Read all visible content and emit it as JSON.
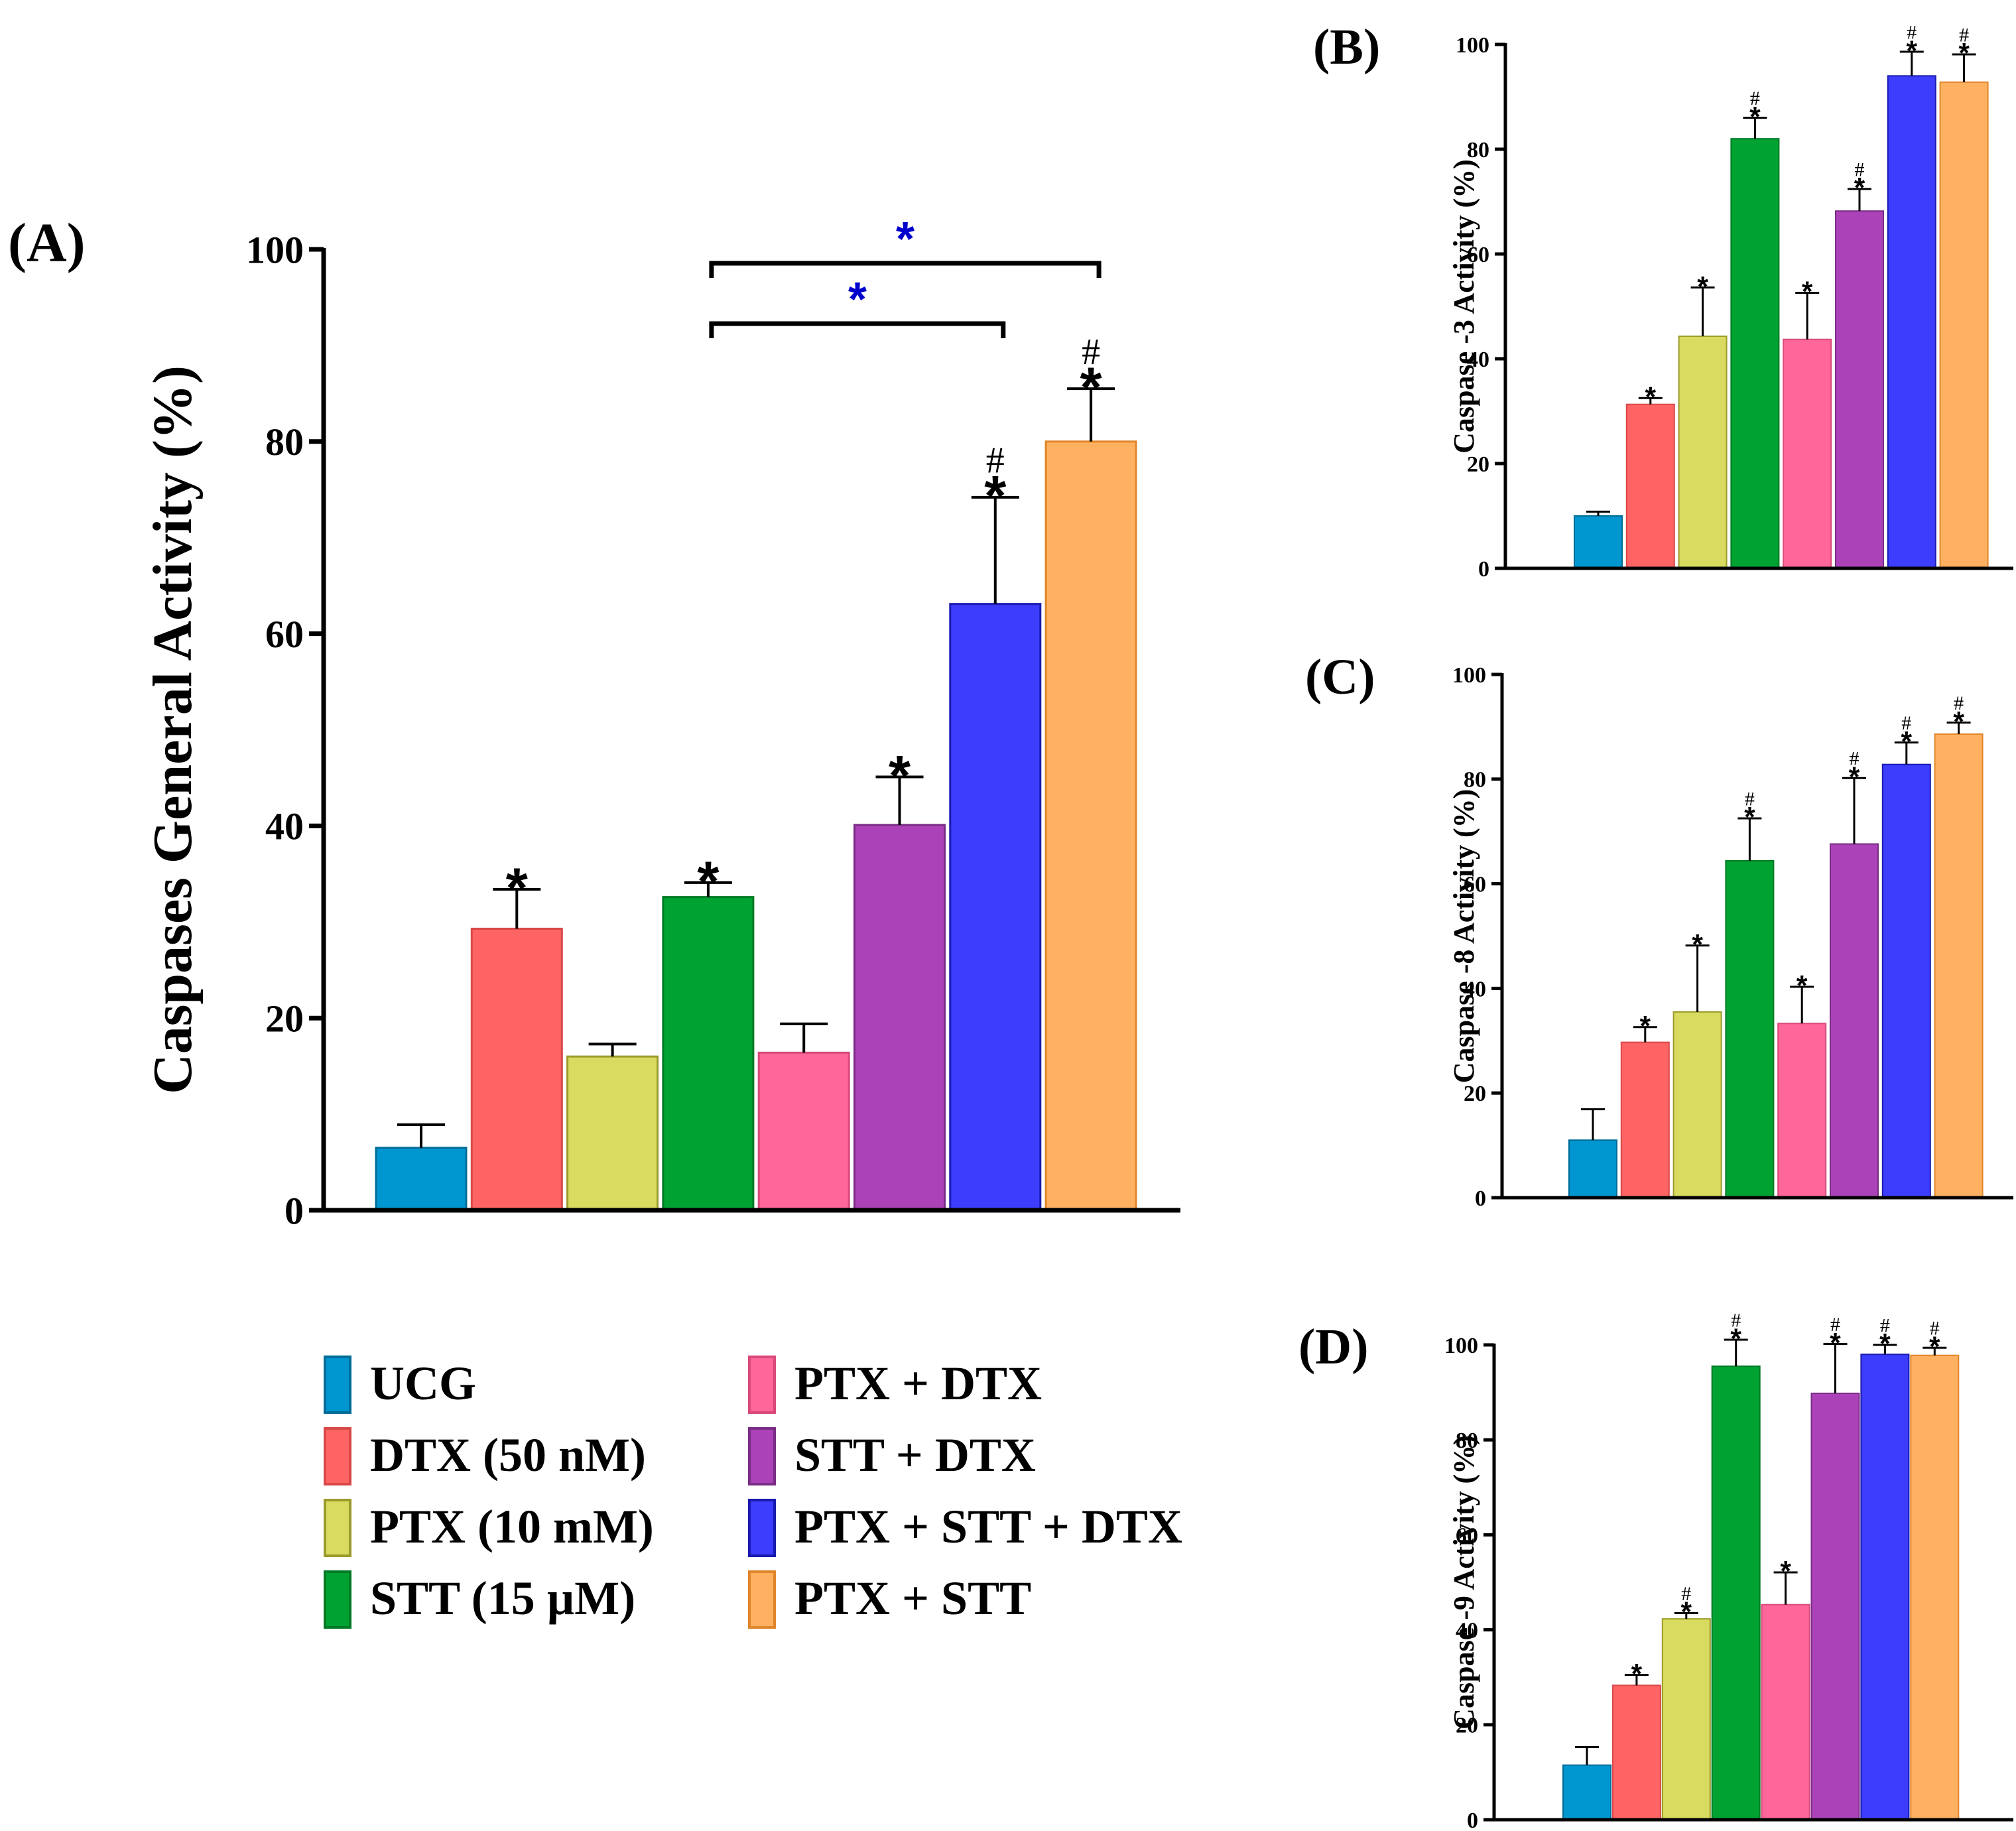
{
  "panel_labels": {
    "A": "(A)",
    "B": "(B)",
    "C": "(C)",
    "D": "(D)"
  },
  "colors": {
    "fills": [
      "#0096cf",
      "#ff6464",
      "#d9db60",
      "#00a232",
      "#ff6699",
      "#ab42b8",
      "#3d3dfd",
      "#ffb161"
    ],
    "strokes": [
      "#006d98",
      "#d94848",
      "#9b9b2a",
      "#007a24",
      "#d94a7a",
      "#7a2d86",
      "#1a1ab0",
      "#e0852a"
    ],
    "significance": "#0000cc",
    "ink": "#000000"
  },
  "legend": {
    "items": [
      "UCG",
      "DTX (50 nM)",
      "PTX (10 mM)",
      "STT (15 µM)",
      "PTX + DTX",
      "STT + DTX",
      "PTX + STT + DTX",
      "PTX + STT"
    ]
  },
  "chart_data": [
    {
      "id": "A",
      "type": "bar",
      "title": "",
      "xlabel": "",
      "ylabel": "Caspases General Activity (%)",
      "ylim": [
        0,
        100
      ],
      "yticks": [
        0,
        20,
        40,
        60,
        80,
        100
      ],
      "categories": [
        "UCG",
        "DTX (50 nM)",
        "PTX (10 mM)",
        "STT (15 µM)",
        "PTX + DTX",
        "STT + DTX",
        "PTX + STT + DTX",
        "PTX + STT"
      ],
      "values": [
        6.5,
        29.3,
        16.0,
        32.6,
        16.4,
        40.1,
        63.1,
        80.0
      ],
      "errors": [
        2.4,
        4.1,
        1.3,
        1.5,
        3.0,
        5.0,
        11.1,
        5.5
      ],
      "annotations": [
        "",
        "*",
        "",
        "*",
        "",
        "*",
        "#\n*",
        "#\n*"
      ],
      "comparisons": [
        {
          "from": 3,
          "to": 6,
          "label": "*"
        },
        {
          "from": 3,
          "to": 7,
          "label": "*"
        }
      ]
    },
    {
      "id": "B",
      "type": "bar",
      "ylabel": "Caspase -3 Activity (%)",
      "ylim": [
        0,
        100
      ],
      "yticks": [
        0,
        20,
        40,
        60,
        80,
        100
      ],
      "categories": [
        "UCG",
        "DTX (50 nM)",
        "PTX (10 mM)",
        "STT (15 µM)",
        "PTX + DTX",
        "STT + DTX",
        "PTX + STT + DTX",
        "PTX + STT"
      ],
      "values": [
        10.0,
        31.3,
        44.3,
        82.0,
        43.7,
        68.2,
        94.0,
        92.8
      ],
      "errors": [
        0.8,
        1.2,
        9.3,
        4.0,
        8.9,
        4.2,
        4.6,
        5.3
      ],
      "annotations": [
        "",
        "*",
        "*",
        "#\n*",
        "*",
        "#\n*",
        "#\n*",
        "#\n*"
      ]
    },
    {
      "id": "C",
      "type": "bar",
      "ylabel": "Caspase -8 Activity (%)",
      "ylim": [
        0,
        100
      ],
      "yticks": [
        0,
        20,
        40,
        60,
        80,
        100
      ],
      "categories": [
        "UCG",
        "DTX (50 nM)",
        "PTX (10 mM)",
        "STT (15 µM)",
        "PTX + DTX",
        "STT + DTX",
        "PTX + STT + DTX",
        "PTX + STT"
      ],
      "values": [
        11.0,
        29.7,
        35.5,
        64.4,
        33.3,
        67.6,
        82.8,
        88.6
      ],
      "errors": [
        5.9,
        2.9,
        12.7,
        8.1,
        7.0,
        12.6,
        4.2,
        2.2
      ],
      "annotations": [
        "",
        "*",
        "*",
        "#\n*",
        "*",
        "#\n*",
        "#\n*",
        "#\n*"
      ]
    },
    {
      "id": "D",
      "type": "bar",
      "ylabel": "Caspase -9 Activity (%)",
      "ylim": [
        0,
        100
      ],
      "yticks": [
        0,
        20,
        40,
        60,
        80,
        100
      ],
      "categories": [
        "UCG",
        "DTX (50 nM)",
        "PTX (10 mM)",
        "STT (15 µM)",
        "PTX + DTX",
        "STT + DTX",
        "PTX + STT + DTX",
        "PTX + STT"
      ],
      "values": [
        11.5,
        28.3,
        42.3,
        95.5,
        45.3,
        89.8,
        98.0,
        97.8
      ],
      "errors": [
        3.8,
        2.2,
        1.2,
        5.6,
        6.8,
        10.4,
        2.0,
        1.6
      ],
      "annotations": [
        "",
        "*",
        "#\n*",
        "#\n*",
        "*",
        "#\n*",
        "#\n*",
        "#\n*"
      ]
    }
  ]
}
